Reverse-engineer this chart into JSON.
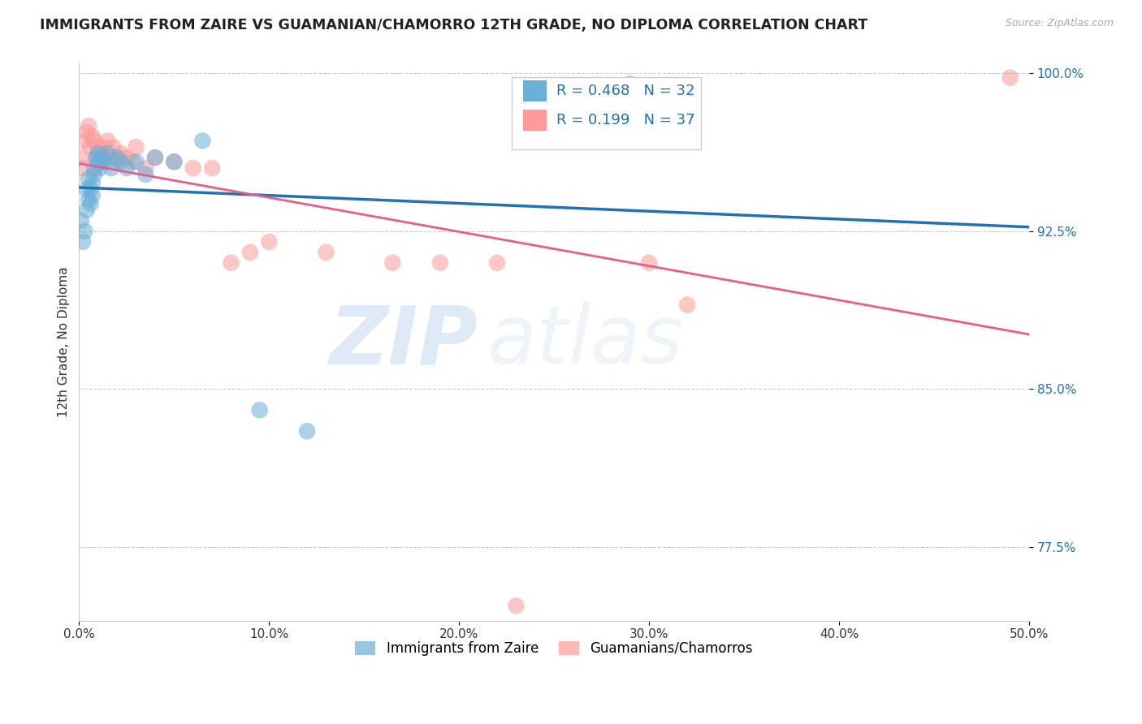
{
  "title": "IMMIGRANTS FROM ZAIRE VS GUAMANIAN/CHAMORRO 12TH GRADE, NO DIPLOMA CORRELATION CHART",
  "source_text": "Source: ZipAtlas.com",
  "ylabel_text": "12th Grade, No Diploma",
  "xmin": 0.0,
  "xmax": 0.5,
  "ymin": 0.74,
  "ymax": 1.005,
  "x_tick_labels": [
    "0.0%",
    "10.0%",
    "20.0%",
    "30.0%",
    "40.0%",
    "50.0%"
  ],
  "x_tick_vals": [
    0.0,
    0.1,
    0.2,
    0.3,
    0.4,
    0.5
  ],
  "y_tick_labels": [
    "77.5%",
    "85.0%",
    "92.5%",
    "100.0%"
  ],
  "y_tick_vals": [
    0.775,
    0.85,
    0.925,
    1.0
  ],
  "grid_color": "#cccccc",
  "blue_color": "#6baed6",
  "pink_color": "#fb9a99",
  "blue_line_color": "#2171b5",
  "pink_line_color": "#e85d8a",
  "R_blue": 0.468,
  "N_blue": 32,
  "R_pink": 0.199,
  "N_pink": 37,
  "legend_label_blue": "Immigrants from Zaire",
  "legend_label_pink": "Guamanians/Chamorros",
  "watermark_zip": "ZIP",
  "watermark_atlas": "atlas",
  "blue_scatter_x": [
    0.001,
    0.002,
    0.003,
    0.004,
    0.004,
    0.005,
    0.005,
    0.006,
    0.006,
    0.007,
    0.007,
    0.008,
    0.008,
    0.009,
    0.01,
    0.01,
    0.011,
    0.012,
    0.013,
    0.015,
    0.017,
    0.02,
    0.022,
    0.025,
    0.03,
    0.035,
    0.04,
    0.05,
    0.065,
    0.095,
    0.12,
    0.29
  ],
  "blue_scatter_y": [
    0.93,
    0.92,
    0.925,
    0.945,
    0.935,
    0.94,
    0.95,
    0.945,
    0.938,
    0.942,
    0.948,
    0.952,
    0.955,
    0.96,
    0.958,
    0.962,
    0.955,
    0.96,
    0.958,
    0.962,
    0.955,
    0.96,
    0.958,
    0.955,
    0.958,
    0.952,
    0.96,
    0.958,
    0.968,
    0.84,
    0.83,
    0.995
  ],
  "pink_scatter_x": [
    0.001,
    0.002,
    0.003,
    0.004,
    0.005,
    0.006,
    0.007,
    0.008,
    0.009,
    0.01,
    0.011,
    0.012,
    0.013,
    0.015,
    0.017,
    0.018,
    0.02,
    0.022,
    0.025,
    0.028,
    0.03,
    0.035,
    0.04,
    0.05,
    0.06,
    0.07,
    0.08,
    0.09,
    0.1,
    0.13,
    0.165,
    0.19,
    0.22,
    0.3,
    0.32,
    0.49,
    0.23
  ],
  "pink_scatter_y": [
    0.96,
    0.955,
    0.968,
    0.972,
    0.975,
    0.965,
    0.97,
    0.968,
    0.96,
    0.965,
    0.962,
    0.958,
    0.965,
    0.968,
    0.96,
    0.965,
    0.958,
    0.962,
    0.96,
    0.958,
    0.965,
    0.955,
    0.96,
    0.958,
    0.955,
    0.955,
    0.91,
    0.915,
    0.92,
    0.915,
    0.91,
    0.91,
    0.91,
    0.91,
    0.89,
    0.998,
    0.747
  ]
}
